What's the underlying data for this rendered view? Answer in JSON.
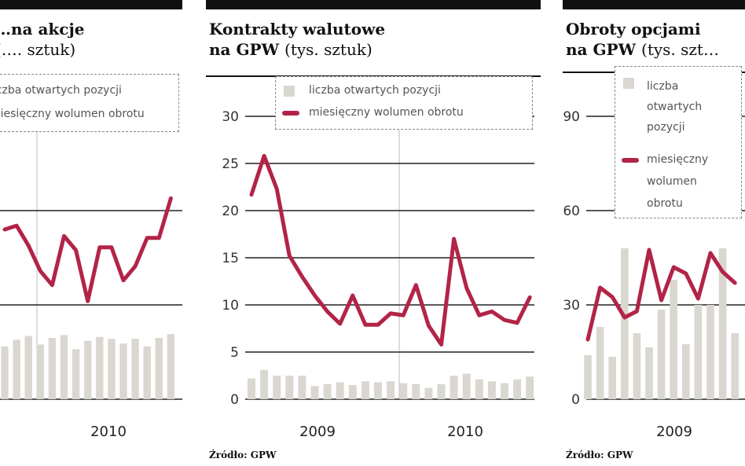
{
  "source": "Źródło: GPW",
  "legend": {
    "bars": "liczba otwartych pozycji",
    "line": "miesięczny wolumen obrotu",
    "bars_wrapped": [
      "liczba",
      "otwartych",
      "pozycji"
    ],
    "line_wrapped": [
      "miesięczny",
      "wolumen",
      "obrotu"
    ]
  },
  "colors": {
    "bars": "#d9d7d0",
    "line": "#b22447",
    "grid": "#222222"
  },
  "chart_data": [
    {
      "type": "bar+line",
      "title": "…na akcje",
      "unit": "(…. sztuk)",
      "x_tick_labels": [
        "2010"
      ],
      "y_tick_labels": [],
      "ylim": [
        0,
        30
      ],
      "bar_values": [
        5.6,
        6.3,
        6.7,
        5.8,
        6.5,
        6.8,
        5.3,
        6.2,
        6.6,
        6.4,
        5.9,
        6.4,
        5.6,
        6.5,
        6.9
      ],
      "line_values": [
        18,
        18.4,
        16.3,
        13.6,
        12.1,
        17.3,
        15.8,
        10.4,
        16.1,
        16.1,
        12.6,
        14.1,
        17.1,
        17.1,
        21.3
      ]
    },
    {
      "type": "bar+line",
      "title": "Kontrakty walutowe",
      "title_line2": "na GPW",
      "unit": "(tys. sztuk)",
      "x_tick_labels": [
        "2009",
        "2010"
      ],
      "y_tick_labels": [
        "0",
        "5",
        "10",
        "15",
        "20",
        "25",
        "30"
      ],
      "yticks": [
        0,
        5,
        10,
        15,
        20,
        25,
        30
      ],
      "ylim": [
        0,
        30
      ],
      "bar_values": [
        2.2,
        3.1,
        2.5,
        2.5,
        2.5,
        1.4,
        1.6,
        1.8,
        1.5,
        1.9,
        1.8,
        1.9,
        1.7,
        1.6,
        1.2,
        1.6,
        2.5,
        2.7,
        2.1,
        1.9,
        1.7,
        2.1,
        2.4
      ],
      "line_values": [
        21.7,
        25.8,
        22.3,
        15.2,
        13,
        11,
        9.3,
        8,
        11,
        7.9,
        7.9,
        9.1,
        8.9,
        12.1,
        7.8,
        5.8,
        17,
        11.8,
        8.9,
        9.3,
        8.4,
        8.1,
        10.8
      ]
    },
    {
      "type": "bar+line",
      "title": "Obroty opcjami",
      "title_line2": "na GPW",
      "unit": "(tys. szt…",
      "x_tick_labels": [
        "2009"
      ],
      "y_tick_labels": [
        "0",
        "30",
        "60",
        "90"
      ],
      "yticks": [
        0,
        30,
        60,
        90
      ],
      "ylim": [
        0,
        90
      ],
      "bar_values": [
        14,
        23,
        13.5,
        48,
        21,
        16.5,
        28.5,
        38,
        17.5,
        30,
        30,
        48,
        21
      ],
      "line_values": [
        19,
        35.5,
        32.5,
        26,
        28,
        47.5,
        31.5,
        42,
        40,
        32,
        46.5,
        40.5,
        37
      ]
    }
  ]
}
